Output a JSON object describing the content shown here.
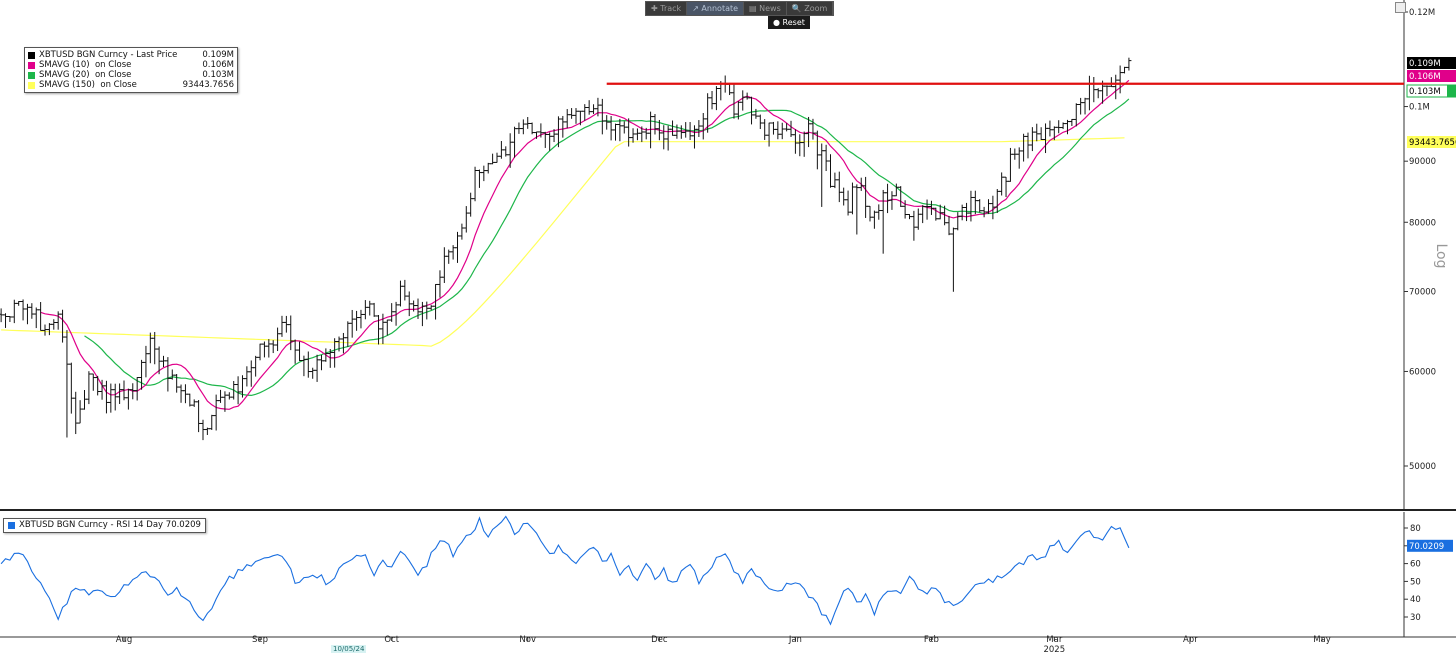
{
  "toolbar": {
    "track": "✚ Track",
    "annotate": "↗ Annotate",
    "news": "▤ News",
    "zoom": "🔍 Zoom",
    "reset": "● Reset"
  },
  "legend": {
    "items": [
      {
        "label": "XBTUSD BGN Curncy - Last Price",
        "value": "0.109M",
        "color": "#000000"
      },
      {
        "label": "SMAVG (10)  on Close",
        "value": "0.106M",
        "color": "#e0008a"
      },
      {
        "label": "SMAVG (20)  on Close",
        "value": "0.103M",
        "color": "#1db64a"
      },
      {
        "label": "SMAVG (150)  on Close",
        "value": "93443.7656",
        "color": "#ffff5a"
      }
    ]
  },
  "rsi_legend": {
    "label": "XBTUSD BGN Curncy - RSI 14 Day 70.0209",
    "color": "#1a6fe0"
  },
  "date_tag": "10/05/24",
  "chart_data": [
    {
      "type": "ohlc",
      "title": "XBTUSD BGN Curncy - Last Price 0.109M",
      "scale": "log",
      "scale_label": "Log",
      "y_ticks": [
        {
          "value": 50000,
          "label": "50000"
        },
        {
          "value": 60000,
          "label": "60000"
        },
        {
          "value": 70000,
          "label": "70000"
        },
        {
          "value": 80000,
          "label": "80000"
        },
        {
          "value": 90000,
          "label": "90000"
        },
        {
          "value": 100000,
          "label": "0.1M"
        },
        {
          "value": 120000,
          "label": "0.12M"
        }
      ],
      "x_labels": [
        {
          "x": 0,
          "label": "Aug"
        },
        {
          "x": 31,
          "label": "Sep"
        },
        {
          "x": 61,
          "label": "Oct"
        },
        {
          "x": 92,
          "label": "Nov"
        },
        {
          "x": 122,
          "label": "Dec"
        },
        {
          "x": 153,
          "label": "Jan"
        },
        {
          "x": 184,
          "label": "Feb"
        },
        {
          "x": 212,
          "label": "Mar"
        },
        {
          "x": 243,
          "label": "Apr"
        },
        {
          "x": 273,
          "label": "May"
        }
      ],
      "year_label": {
        "x": 212,
        "label": "2025"
      },
      "resistance": {
        "value": 104500,
        "color": "#e01010",
        "from_x": 110
      },
      "anchors": [
        [
          -28,
          67000
        ],
        [
          -22,
          68500
        ],
        [
          -18,
          65000
        ],
        [
          -15,
          66500
        ],
        [
          -13,
          61000
        ],
        [
          -11,
          54000
        ],
        [
          -8,
          59000
        ],
        [
          -5,
          57500
        ],
        [
          -2,
          57000
        ],
        [
          2,
          58500
        ],
        [
          6,
          64000
        ],
        [
          10,
          60000
        ],
        [
          12,
          59000
        ],
        [
          14,
          58000
        ],
        [
          17,
          55000
        ],
        [
          19,
          53500
        ],
        [
          21,
          56500
        ],
        [
          25,
          58000
        ],
        [
          28,
          59500
        ],
        [
          31,
          62500
        ],
        [
          35,
          64500
        ],
        [
          37,
          66000
        ],
        [
          40,
          61500
        ],
        [
          42,
          60500
        ],
        [
          45,
          62000
        ],
        [
          47,
          62500
        ],
        [
          50,
          65000
        ],
        [
          53,
          67500
        ],
        [
          56,
          68000
        ],
        [
          58,
          65500
        ],
        [
          60,
          66500
        ],
        [
          63,
          70000
        ],
        [
          66,
          69000
        ],
        [
          68,
          67500
        ],
        [
          70,
          68000
        ],
        [
          72,
          73000
        ],
        [
          75,
          76000
        ],
        [
          78,
          82000
        ],
        [
          80,
          88000
        ],
        [
          82,
          89000
        ],
        [
          85,
          91500
        ],
        [
          88,
          92000
        ],
        [
          90,
          97000
        ],
        [
          93,
          95500
        ],
        [
          95,
          96500
        ],
        [
          97,
          94500
        ],
        [
          99,
          98000
        ],
        [
          101,
          97000
        ],
        [
          103,
          99000
        ],
        [
          105,
          99500
        ],
        [
          107,
          100500
        ],
        [
          110,
          97500
        ],
        [
          112,
          96000
        ],
        [
          114,
          95500
        ],
        [
          117,
          95000
        ],
        [
          120,
          97000
        ],
        [
          122,
          94000
        ],
        [
          125,
          96000
        ],
        [
          127,
          94500
        ],
        [
          130,
          95500
        ],
        [
          132,
          98500
        ],
        [
          134,
          102000
        ],
        [
          137,
          104000
        ],
        [
          139,
          100000
        ],
        [
          141,
          101500
        ],
        [
          143,
          99000
        ],
        [
          145,
          96500
        ],
        [
          148,
          95000
        ],
        [
          150,
          96500
        ],
        [
          152,
          94500
        ],
        [
          154,
          93500
        ],
        [
          156,
          96000
        ],
        [
          159,
          90500
        ],
        [
          161,
          87000
        ],
        [
          163,
          84500
        ],
        [
          165,
          82500
        ],
        [
          167,
          86500
        ],
        [
          169,
          83500
        ],
        [
          171,
          80500
        ],
        [
          173,
          84000
        ],
        [
          176,
          85500
        ],
        [
          178,
          82000
        ],
        [
          180,
          80000
        ],
        [
          182,
          81500
        ],
        [
          184,
          82500
        ],
        [
          186,
          81000
        ],
        [
          188,
          78000
        ],
        [
          190,
          80500
        ],
        [
          193,
          83500
        ],
        [
          195,
          83000
        ],
        [
          197,
          82500
        ],
        [
          199,
          84500
        ],
        [
          201,
          87500
        ],
        [
          203,
          92500
        ],
        [
          205,
          93500
        ],
        [
          207,
          94500
        ],
        [
          209,
          93500
        ],
        [
          211,
          95500
        ],
        [
          213,
          97000
        ],
        [
          215,
          96500
        ],
        [
          217,
          101000
        ],
        [
          219,
          103000
        ],
        [
          221,
          103500
        ],
        [
          223,
          103000
        ],
        [
          225,
          105000
        ],
        [
          227,
          107500
        ],
        [
          229,
          109000
        ]
      ],
      "series": [
        {
          "name": "XBTUSD BGN Curncy - Last Price",
          "value": 109000,
          "color": "#000000",
          "label": "0.109M"
        },
        {
          "name": "SMAVG (10)  on Close",
          "value": 106000,
          "color": "#e0008a",
          "label": "0.106M"
        },
        {
          "name": "SMAVG (20)  on Close",
          "value": 103000,
          "color": "#1db64a",
          "label": "0.103M"
        },
        {
          "name": "SMAVG (150)  on Close",
          "value": 93443.7656,
          "color": "#ffff5a",
          "label": "93443.7656"
        }
      ]
    },
    {
      "type": "line",
      "title": "XBTUSD BGN Curncy - RSI 14 Day 70.0209",
      "y_ticks": [
        30,
        40,
        50,
        60,
        70,
        80
      ],
      "last_value_label": "70.0209",
      "color": "#1a6fe0",
      "anchors": [
        [
          -28,
          60
        ],
        [
          -25,
          65
        ],
        [
          -22,
          62
        ],
        [
          -20,
          53
        ],
        [
          -17,
          40
        ],
        [
          -15,
          28
        ],
        [
          -13,
          39
        ],
        [
          -11,
          48
        ],
        [
          -8,
          42
        ],
        [
          -6,
          46
        ],
        [
          -3,
          41
        ],
        [
          -1,
          45
        ],
        [
          2,
          52
        ],
        [
          5,
          57
        ],
        [
          8,
          49
        ],
        [
          10,
          43
        ],
        [
          12,
          45
        ],
        [
          14,
          40
        ],
        [
          16,
          35
        ],
        [
          18,
          29
        ],
        [
          20,
          35
        ],
        [
          22,
          44
        ],
        [
          24,
          51
        ],
        [
          26,
          55
        ],
        [
          28,
          58
        ],
        [
          30,
          61
        ],
        [
          33,
          64
        ],
        [
          35,
          66
        ],
        [
          37,
          62
        ],
        [
          39,
          48
        ],
        [
          41,
          51
        ],
        [
          43,
          55
        ],
        [
          45,
          52
        ],
        [
          47,
          48
        ],
        [
          49,
          57
        ],
        [
          52,
          63
        ],
        [
          55,
          65
        ],
        [
          57,
          55
        ],
        [
          59,
          60
        ],
        [
          61,
          59
        ],
        [
          63,
          67
        ],
        [
          65,
          61
        ],
        [
          67,
          55
        ],
        [
          69,
          60
        ],
        [
          71,
          69
        ],
        [
          73,
          73
        ],
        [
          75,
          65
        ],
        [
          77,
          72
        ],
        [
          79,
          78
        ],
        [
          81,
          84
        ],
        [
          83,
          76
        ],
        [
          85,
          82
        ],
        [
          87,
          86
        ],
        [
          89,
          77
        ],
        [
          91,
          83
        ],
        [
          93,
          80
        ],
        [
          95,
          72
        ],
        [
          97,
          65
        ],
        [
          99,
          70
        ],
        [
          101,
          63
        ],
        [
          103,
          60
        ],
        [
          105,
          66
        ],
        [
          107,
          70
        ],
        [
          109,
          60
        ],
        [
          111,
          64
        ],
        [
          113,
          53
        ],
        [
          115,
          57
        ],
        [
          117,
          50
        ],
        [
          119,
          60
        ],
        [
          121,
          52
        ],
        [
          123,
          56
        ],
        [
          125,
          48
        ],
        [
          127,
          55
        ],
        [
          129,
          61
        ],
        [
          131,
          50
        ],
        [
          133,
          57
        ],
        [
          135,
          62
        ],
        [
          137,
          65
        ],
        [
          139,
          55
        ],
        [
          141,
          50
        ],
        [
          143,
          57
        ],
        [
          145,
          51
        ],
        [
          147,
          45
        ],
        [
          149,
          43
        ],
        [
          151,
          47
        ],
        [
          153,
          50
        ],
        [
          155,
          44
        ],
        [
          157,
          42
        ],
        [
          159,
          32
        ],
        [
          161,
          26
        ],
        [
          163,
          40
        ],
        [
          165,
          48
        ],
        [
          167,
          38
        ],
        [
          169,
          42
        ],
        [
          171,
          33
        ],
        [
          173,
          41
        ],
        [
          175,
          46
        ],
        [
          177,
          44
        ],
        [
          179,
          52
        ],
        [
          181,
          47
        ],
        [
          183,
          43
        ],
        [
          185,
          47
        ],
        [
          187,
          40
        ],
        [
          189,
          36
        ],
        [
          191,
          40
        ],
        [
          193,
          45
        ],
        [
          195,
          48
        ],
        [
          197,
          50
        ],
        [
          199,
          52
        ],
        [
          201,
          55
        ],
        [
          203,
          60
        ],
        [
          205,
          61
        ],
        [
          207,
          64
        ],
        [
          209,
          63
        ],
        [
          211,
          68
        ],
        [
          213,
          72
        ],
        [
          215,
          67
        ],
        [
          217,
          72
        ],
        [
          219,
          78
        ],
        [
          221,
          76
        ],
        [
          223,
          73
        ],
        [
          225,
          79
        ],
        [
          227,
          82
        ],
        [
          229,
          70
        ]
      ]
    }
  ]
}
